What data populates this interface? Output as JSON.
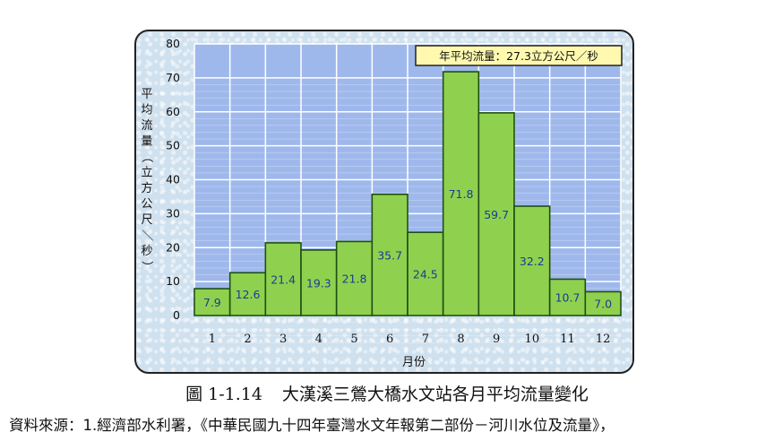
{
  "chart_data": {
    "type": "bar",
    "categories": [
      "1",
      "2",
      "3",
      "4",
      "5",
      "6",
      "7",
      "8",
      "9",
      "10",
      "11",
      "12"
    ],
    "values": [
      7.9,
      12.6,
      21.4,
      19.3,
      21.8,
      35.7,
      24.5,
      71.8,
      59.7,
      32.2,
      10.7,
      7.0
    ],
    "value_labels": [
      "7.9",
      "12.6",
      "21.4",
      "19.3",
      "21.8",
      "35.7",
      "24.5",
      "71.8",
      "59.7",
      "32.2",
      "10.7",
      "7.0"
    ],
    "xlabel": "月份",
    "ylabel": "平均流量（立方公尺／秒）",
    "ylim": [
      0,
      80
    ],
    "yticks": [
      "0",
      "10",
      "20",
      "30",
      "40",
      "50",
      "60",
      "70",
      "80"
    ],
    "grid": true,
    "annotation": "年平均流量：27.3立方公尺／秒",
    "colors": {
      "bar_fill": "#8fd14f",
      "bar_stroke": "#1f4f12",
      "plot_background": "#9fb8ec",
      "grid": "#ffffff",
      "value_label": "#1a3d8f",
      "annotation_background": "#fff9b0"
    }
  },
  "caption": {
    "figure_number": "圖 1-1.14",
    "title": "大漢溪三鶯大橋水文站各月平均流量變化"
  },
  "source_note": "資料來源：1.經濟部水利署，《中華民國九十四年臺灣水文年報第二部份－河川水位及流量》，"
}
